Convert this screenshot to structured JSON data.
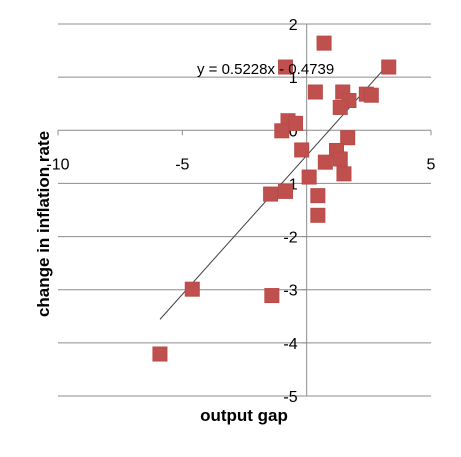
{
  "chart_data": {
    "type": "scatter",
    "title": "",
    "xlabel": "output gap",
    "ylabel": "change in inflation rate",
    "xlim": [
      -10,
      5
    ],
    "ylim": [
      -5,
      2
    ],
    "x_ticks": [
      -10,
      -5,
      0,
      5
    ],
    "y_ticks": [
      2,
      1,
      0,
      -1,
      -2,
      -3,
      -4,
      -5
    ],
    "x_tick_labels": [
      "-10",
      "-5",
      "0",
      "5"
    ],
    "y_tick_labels": [
      "2",
      "1",
      "0",
      "-1",
      "-2",
      "-3",
      "-4",
      "-5"
    ],
    "grid": "horizontal",
    "legend": "none",
    "marker_color": "#c0504d",
    "marker_edge_color": "#b84b48",
    "trendline": {
      "type": "linear",
      "slope": 0.5228,
      "intercept": -0.4739,
      "x_range": [
        -5.9,
        3.2
      ],
      "equation_label": "y = 0.5228x - 0.4739",
      "color": "#404040"
    },
    "points": [
      {
        "x": 0.7,
        "y": 1.64
      },
      {
        "x": -0.85,
        "y": 1.19
      },
      {
        "x": 3.3,
        "y": 1.19
      },
      {
        "x": 0.35,
        "y": 0.72
      },
      {
        "x": 1.45,
        "y": 0.72
      },
      {
        "x": 2.4,
        "y": 0.68
      },
      {
        "x": 2.6,
        "y": 0.66
      },
      {
        "x": 1.7,
        "y": 0.56
      },
      {
        "x": 1.35,
        "y": 0.43
      },
      {
        "x": -0.75,
        "y": 0.18
      },
      {
        "x": -0.45,
        "y": 0.13
      },
      {
        "x": -1.0,
        "y": -0.01
      },
      {
        "x": 1.65,
        "y": -0.14
      },
      {
        "x": -0.2,
        "y": -0.37
      },
      {
        "x": 1.2,
        "y": -0.38
      },
      {
        "x": 1.35,
        "y": -0.54
      },
      {
        "x": 0.75,
        "y": -0.6
      },
      {
        "x": 1.5,
        "y": -0.82
      },
      {
        "x": 0.1,
        "y": -0.88
      },
      {
        "x": -0.85,
        "y": -1.15
      },
      {
        "x": -1.45,
        "y": -1.2
      },
      {
        "x": 0.45,
        "y": -1.23
      },
      {
        "x": 0.45,
        "y": -1.6
      },
      {
        "x": -4.6,
        "y": -2.99
      },
      {
        "x": -1.4,
        "y": -3.11
      },
      {
        "x": -5.9,
        "y": -4.21
      }
    ]
  }
}
